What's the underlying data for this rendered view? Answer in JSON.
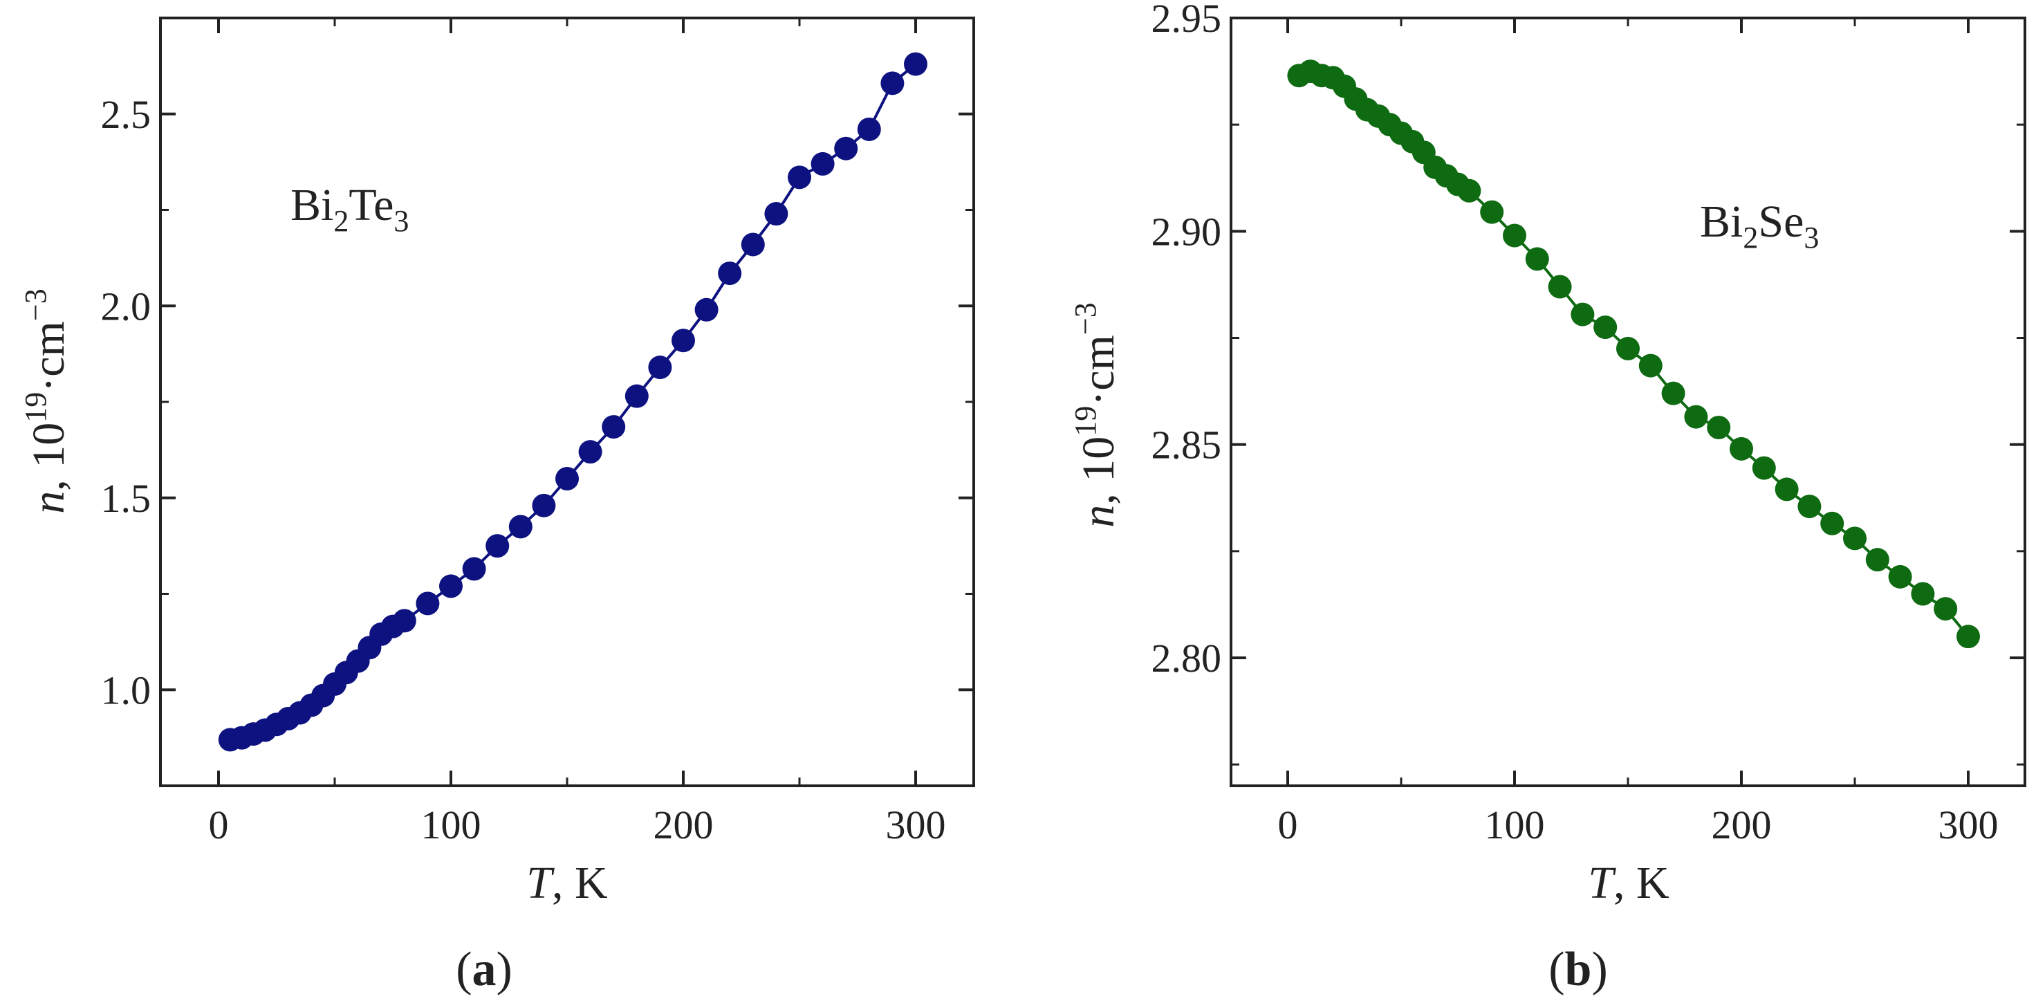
{
  "chart_data": [
    {
      "type": "scatter",
      "panel_label": "a",
      "annotation": {
        "base1": "Bi",
        "sub1": "2",
        "base2": "Te",
        "sub2": "3"
      },
      "xlabel": {
        "symbol": "T",
        "unit": ", K"
      },
      "ylabel": {
        "symbol": "n",
        "text": ", 10",
        "sup1": "19",
        "mid": "·cm",
        "sup2": "−3"
      },
      "xlim": [
        -25,
        325
      ],
      "ylim": [
        0.75,
        2.75
      ],
      "xticks": [
        0,
        100,
        200,
        300
      ],
      "xtick_labels": [
        "0",
        "100",
        "200",
        "300"
      ],
      "yticks": [
        1.0,
        1.5,
        2.0,
        2.5
      ],
      "ytick_labels": [
        "1.0",
        "1.5",
        "2.0",
        "2.5"
      ],
      "color": "#0d1280",
      "grid": false,
      "series": [
        {
          "x": [
            5,
            10,
            15,
            20,
            25,
            30,
            35,
            40,
            45,
            50,
            55,
            60,
            65,
            70,
            75,
            80,
            90,
            100,
            110,
            120,
            130,
            140,
            150,
            160,
            170,
            180,
            190,
            200,
            210,
            220,
            230,
            240,
            250,
            260,
            270,
            280,
            290,
            300
          ],
          "y": [
            0.87,
            0.875,
            0.885,
            0.895,
            0.91,
            0.925,
            0.94,
            0.96,
            0.985,
            1.015,
            1.045,
            1.075,
            1.11,
            1.145,
            1.165,
            1.18,
            1.225,
            1.27,
            1.315,
            1.375,
            1.425,
            1.48,
            1.55,
            1.62,
            1.685,
            1.765,
            1.84,
            1.91,
            1.99,
            2.085,
            2.16,
            2.24,
            2.335,
            2.37,
            2.41,
            2.46,
            2.58,
            2.63
          ]
        }
      ]
    },
    {
      "type": "scatter",
      "panel_label": "b",
      "annotation": {
        "base1": "Bi",
        "sub1": "2",
        "base2": "Se",
        "sub2": "3"
      },
      "xlabel": {
        "symbol": "T",
        "unit": ", K"
      },
      "ylabel": {
        "symbol": "n",
        "text": ", 10",
        "sup1": "19",
        "mid": "·cm",
        "sup2": "−3"
      },
      "xlim": [
        -25,
        325
      ],
      "ylim": [
        2.77,
        2.95
      ],
      "xticks": [
        0,
        100,
        200,
        300
      ],
      "xtick_labels": [
        "0",
        "100",
        "200",
        "300"
      ],
      "yticks": [
        2.8,
        2.85,
        2.9,
        2.95
      ],
      "ytick_labels": [
        "2.80",
        "2.85",
        "2.90",
        "2.95"
      ],
      "color": "#0e6b12",
      "grid": false,
      "series": [
        {
          "x": [
            5,
            10,
            15,
            20,
            25,
            30,
            35,
            40,
            45,
            50,
            55,
            60,
            65,
            70,
            75,
            80,
            90,
            100,
            110,
            120,
            130,
            140,
            150,
            160,
            170,
            180,
            190,
            200,
            210,
            220,
            230,
            240,
            250,
            260,
            270,
            280,
            290,
            300
          ],
          "y": [
            2.9365,
            2.9375,
            2.9365,
            2.936,
            2.934,
            2.931,
            2.9285,
            2.927,
            2.925,
            2.923,
            2.921,
            2.9185,
            2.915,
            2.913,
            2.911,
            2.9095,
            2.9045,
            2.899,
            2.8935,
            2.887,
            2.8805,
            2.8775,
            2.8725,
            2.8685,
            2.862,
            2.8565,
            2.854,
            2.849,
            2.8445,
            2.8395,
            2.8355,
            2.8315,
            2.828,
            2.823,
            2.819,
            2.815,
            2.8115,
            2.805
          ]
        }
      ]
    }
  ]
}
